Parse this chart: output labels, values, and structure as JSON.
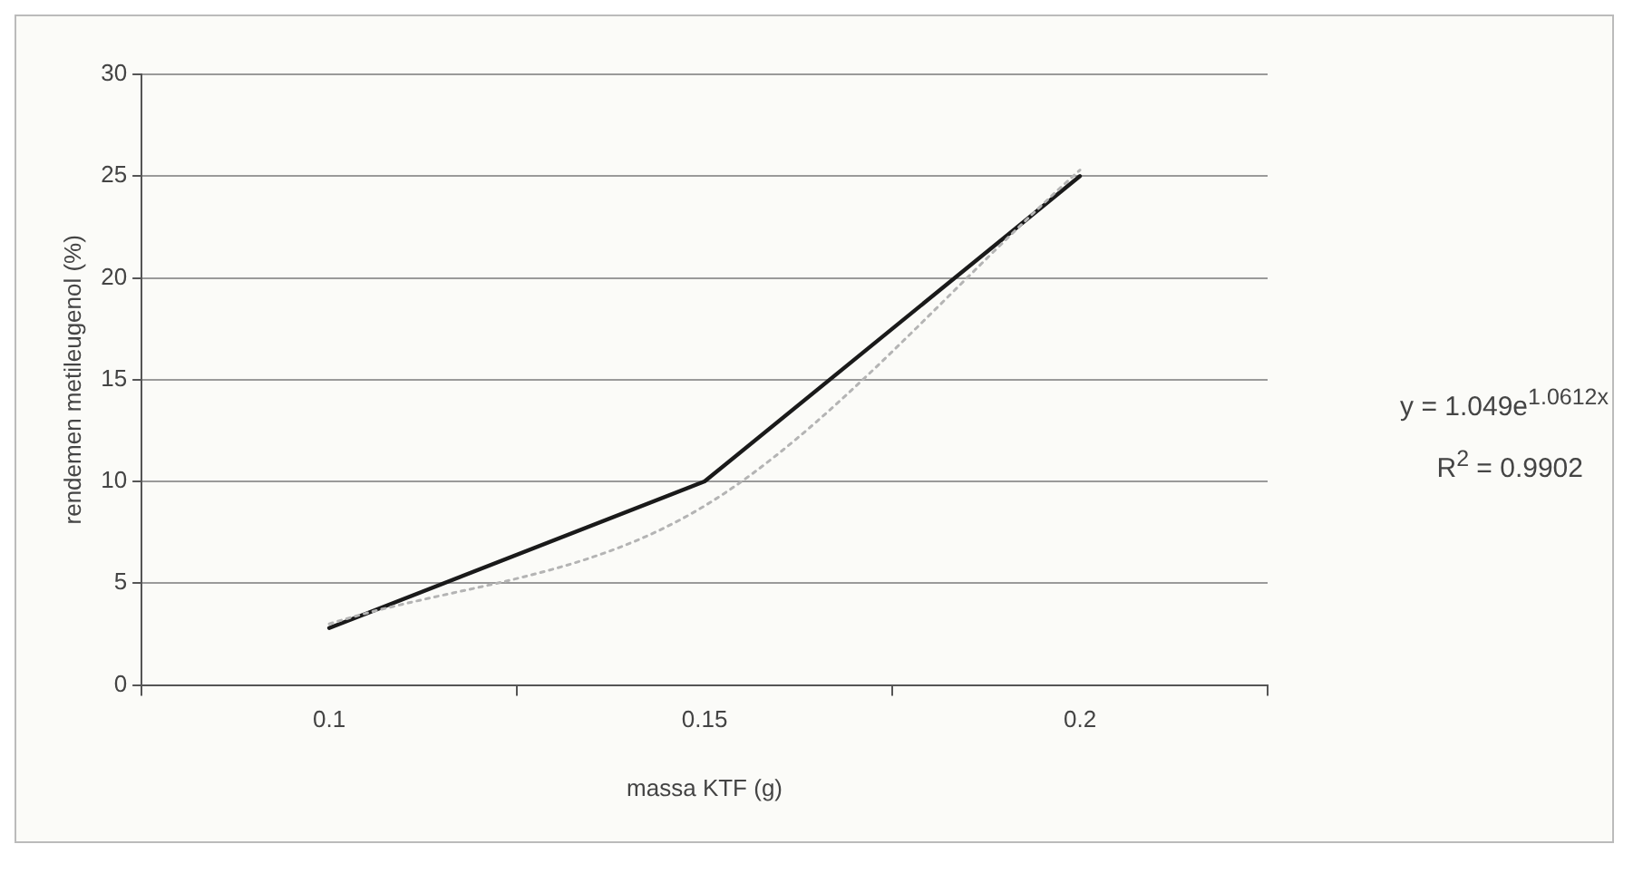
{
  "chart_data": {
    "type": "line",
    "xlabel": "massa KTF (g)",
    "ylabel": "rendemen metileugenol (%)",
    "categories": [
      "0.1",
      "0.15",
      "0.2"
    ],
    "series": [
      {
        "color": "#1a1a1a",
        "values": [
          2.8,
          10,
          25
        ],
        "line_style": "solid"
      },
      {
        "type": "line",
        "color": "#b4b4b4",
        "values": [
          3.0,
          8.8,
          25.3
        ],
        "line_style": "dotted"
      }
    ],
    "ylim": [
      0,
      30
    ],
    "yticks": [
      0,
      5,
      10,
      15,
      20,
      25,
      30
    ],
    "grid": "y",
    "marker": "none",
    "annotations": [
      "y = 1.049e$^{1.0612x}$",
      "R$^{2}$ = 0.9902"
    ]
  }
}
